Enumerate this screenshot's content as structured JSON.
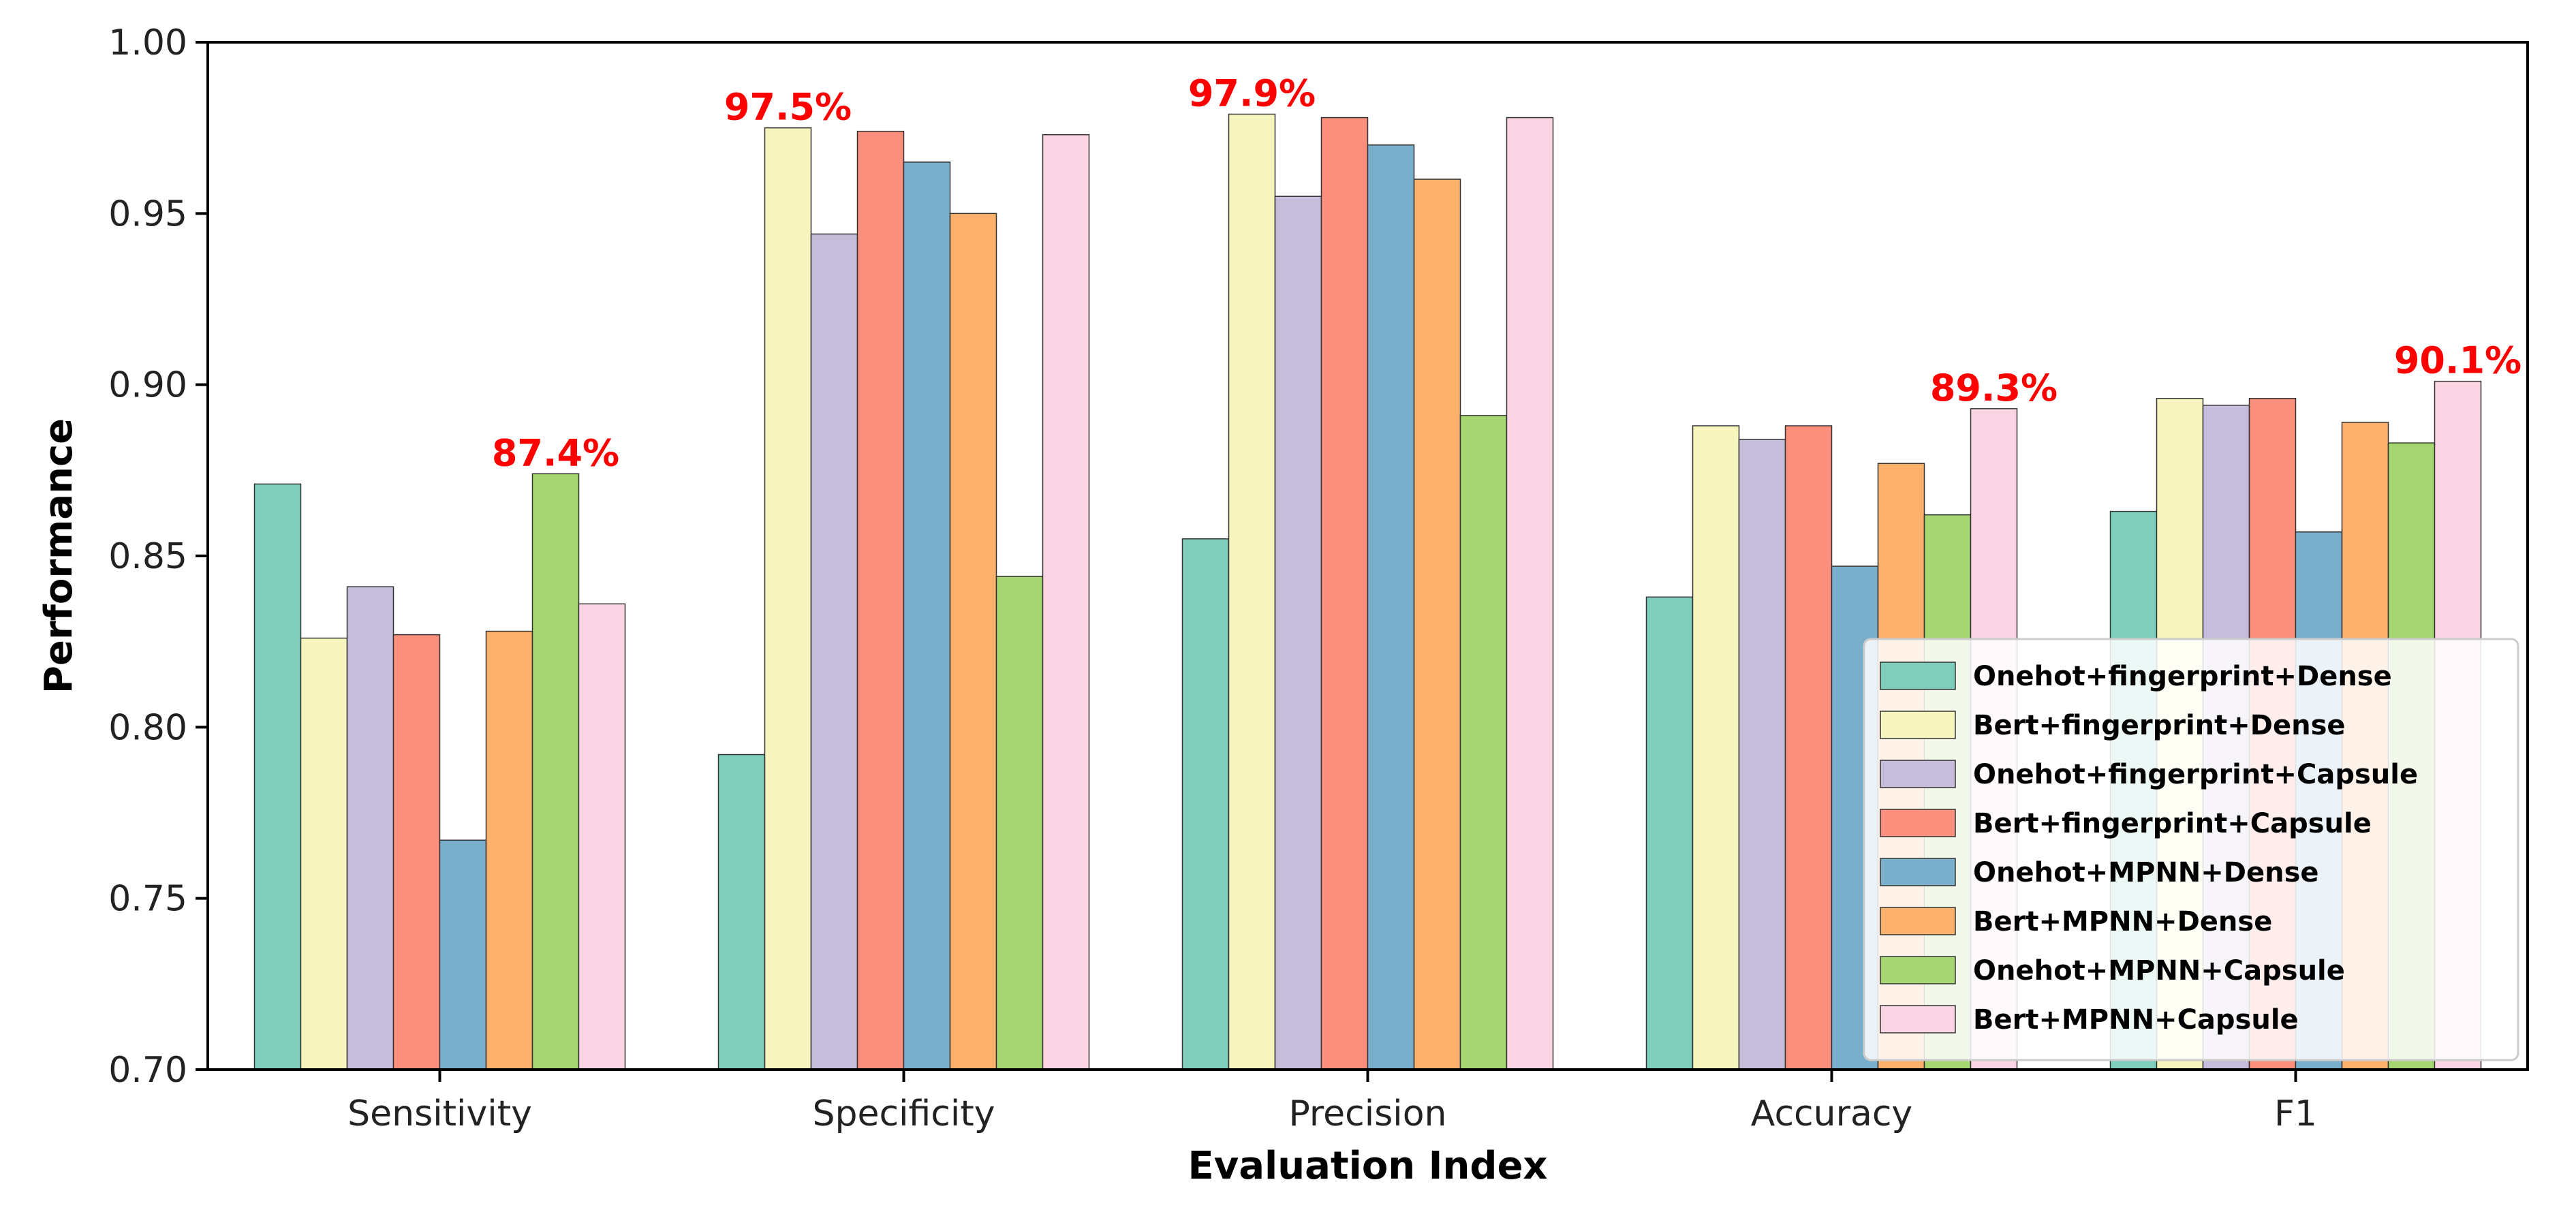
{
  "chart_data": {
    "type": "bar",
    "title": "",
    "xlabel": "Evaluation Index",
    "ylabel": "Performance",
    "ylim": [
      0.7,
      1.0
    ],
    "yticks": [
      "0.70",
      "0.75",
      "0.80",
      "0.85",
      "0.90",
      "0.95",
      "1.00"
    ],
    "categories": [
      "Sensitivity",
      "Specificity",
      "Precision",
      "Accuracy",
      "F1"
    ],
    "series": [
      {
        "name": "Onehot+fingerprint+Dense",
        "color": "#7fcdbb",
        "values": [
          0.871,
          0.792,
          0.855,
          0.838,
          0.863
        ]
      },
      {
        "name": "Bert+fingerprint+Dense",
        "color": "#f5f5bd",
        "values": [
          0.826,
          0.975,
          0.979,
          0.888,
          0.896
        ]
      },
      {
        "name": "Onehot+fingerprint+Capsule",
        "color": "#c5bdd9",
        "values": [
          0.841,
          0.944,
          0.955,
          0.884,
          0.894
        ]
      },
      {
        "name": "Bert+fingerprint+Capsule",
        "color": "#fb8f7e",
        "values": [
          0.827,
          0.974,
          0.978,
          0.888,
          0.896
        ]
      },
      {
        "name": "Onehot+MPNN+Dense",
        "color": "#7aafcc",
        "values": [
          0.767,
          0.965,
          0.97,
          0.847,
          0.857
        ]
      },
      {
        "name": "Bert+MPNN+Dense",
        "color": "#fbb06b",
        "values": [
          0.828,
          0.95,
          0.96,
          0.877,
          0.889
        ]
      },
      {
        "name": "Onehot+MPNN+Capsule",
        "color": "#a6d672",
        "values": [
          0.874,
          0.844,
          0.891,
          0.862,
          0.883
        ]
      },
      {
        "name": "Bert+MPNN+Capsule",
        "color": "#fcd5e4",
        "values": [
          0.836,
          0.973,
          0.978,
          0.893,
          0.901
        ]
      }
    ],
    "annotations": [
      {
        "text": "87.4%",
        "category": "Sensitivity",
        "series": "Onehot+MPNN+Capsule"
      },
      {
        "text": "97.5%",
        "category": "Specificity",
        "series": "Bert+fingerprint+Dense"
      },
      {
        "text": "97.9%",
        "category": "Precision",
        "series": "Bert+fingerprint+Dense"
      },
      {
        "text": "89.3%",
        "category": "Accuracy",
        "series": "Bert+MPNN+Capsule"
      },
      {
        "text": "90.1%",
        "category": "F1",
        "series": "Bert+MPNN+Capsule"
      }
    ],
    "legend_position": "lower-right",
    "grid": false
  }
}
